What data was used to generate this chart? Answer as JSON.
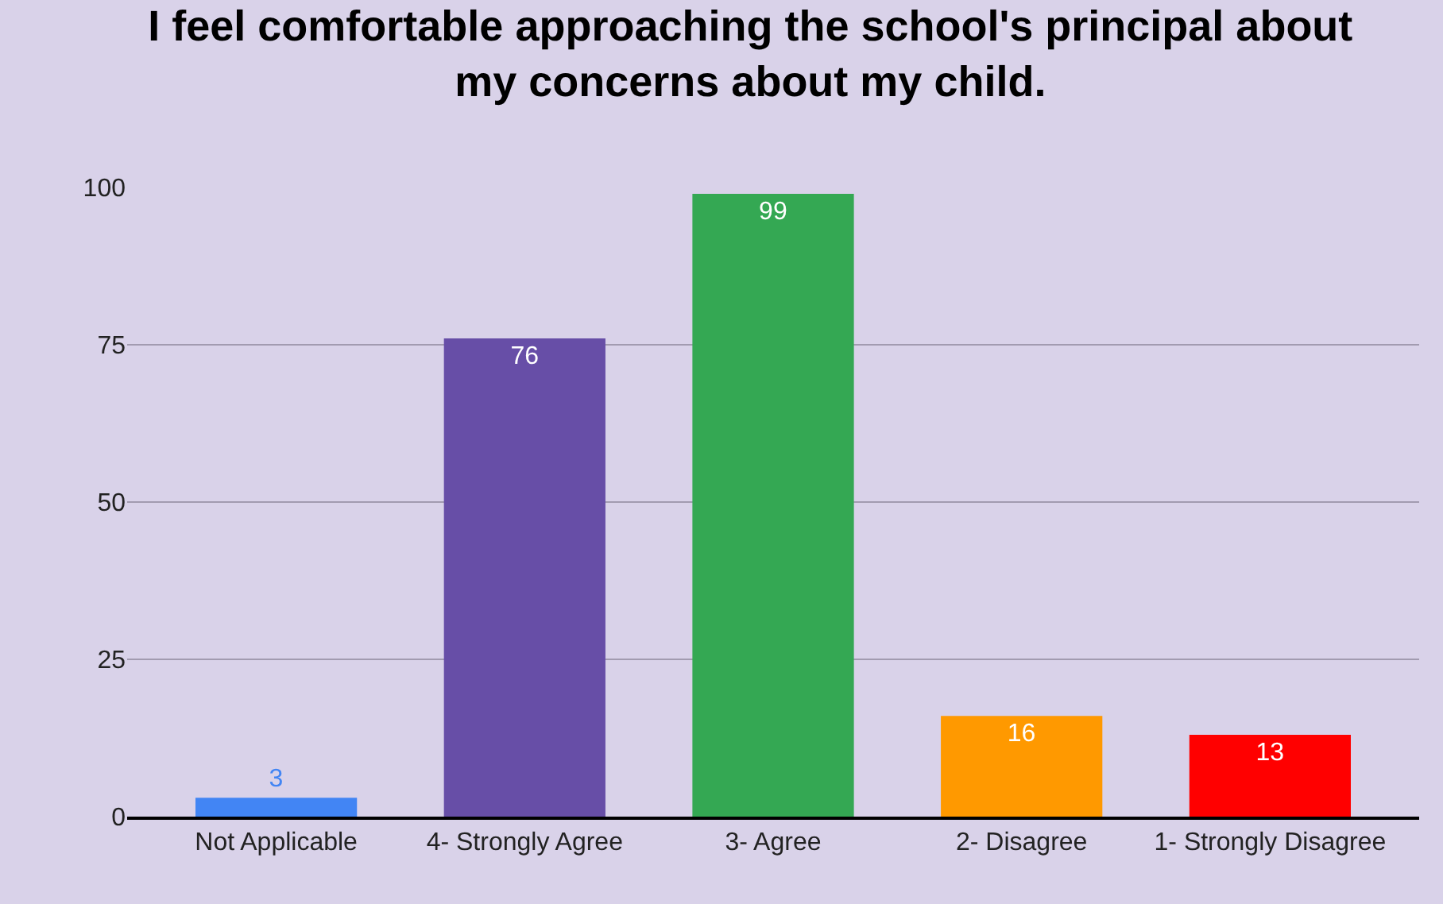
{
  "chart_data": {
    "type": "bar",
    "title": "I feel comfortable approaching the school's principal about my concerns about my child.",
    "categories": [
      "Not Applicable",
      "4- Strongly Agree",
      "3- Agree",
      "2- Disagree",
      "1- Strongly Disagree"
    ],
    "values": [
      3,
      76,
      99,
      16,
      13
    ],
    "colors": [
      "#4285f4",
      "#674ea7",
      "#34a853",
      "#ff9900",
      "#ff0000"
    ],
    "ylim": [
      0,
      100
    ],
    "yticks": [
      0,
      25,
      50,
      75,
      100
    ],
    "grid": "y",
    "data_labels": true,
    "legend": false
  }
}
